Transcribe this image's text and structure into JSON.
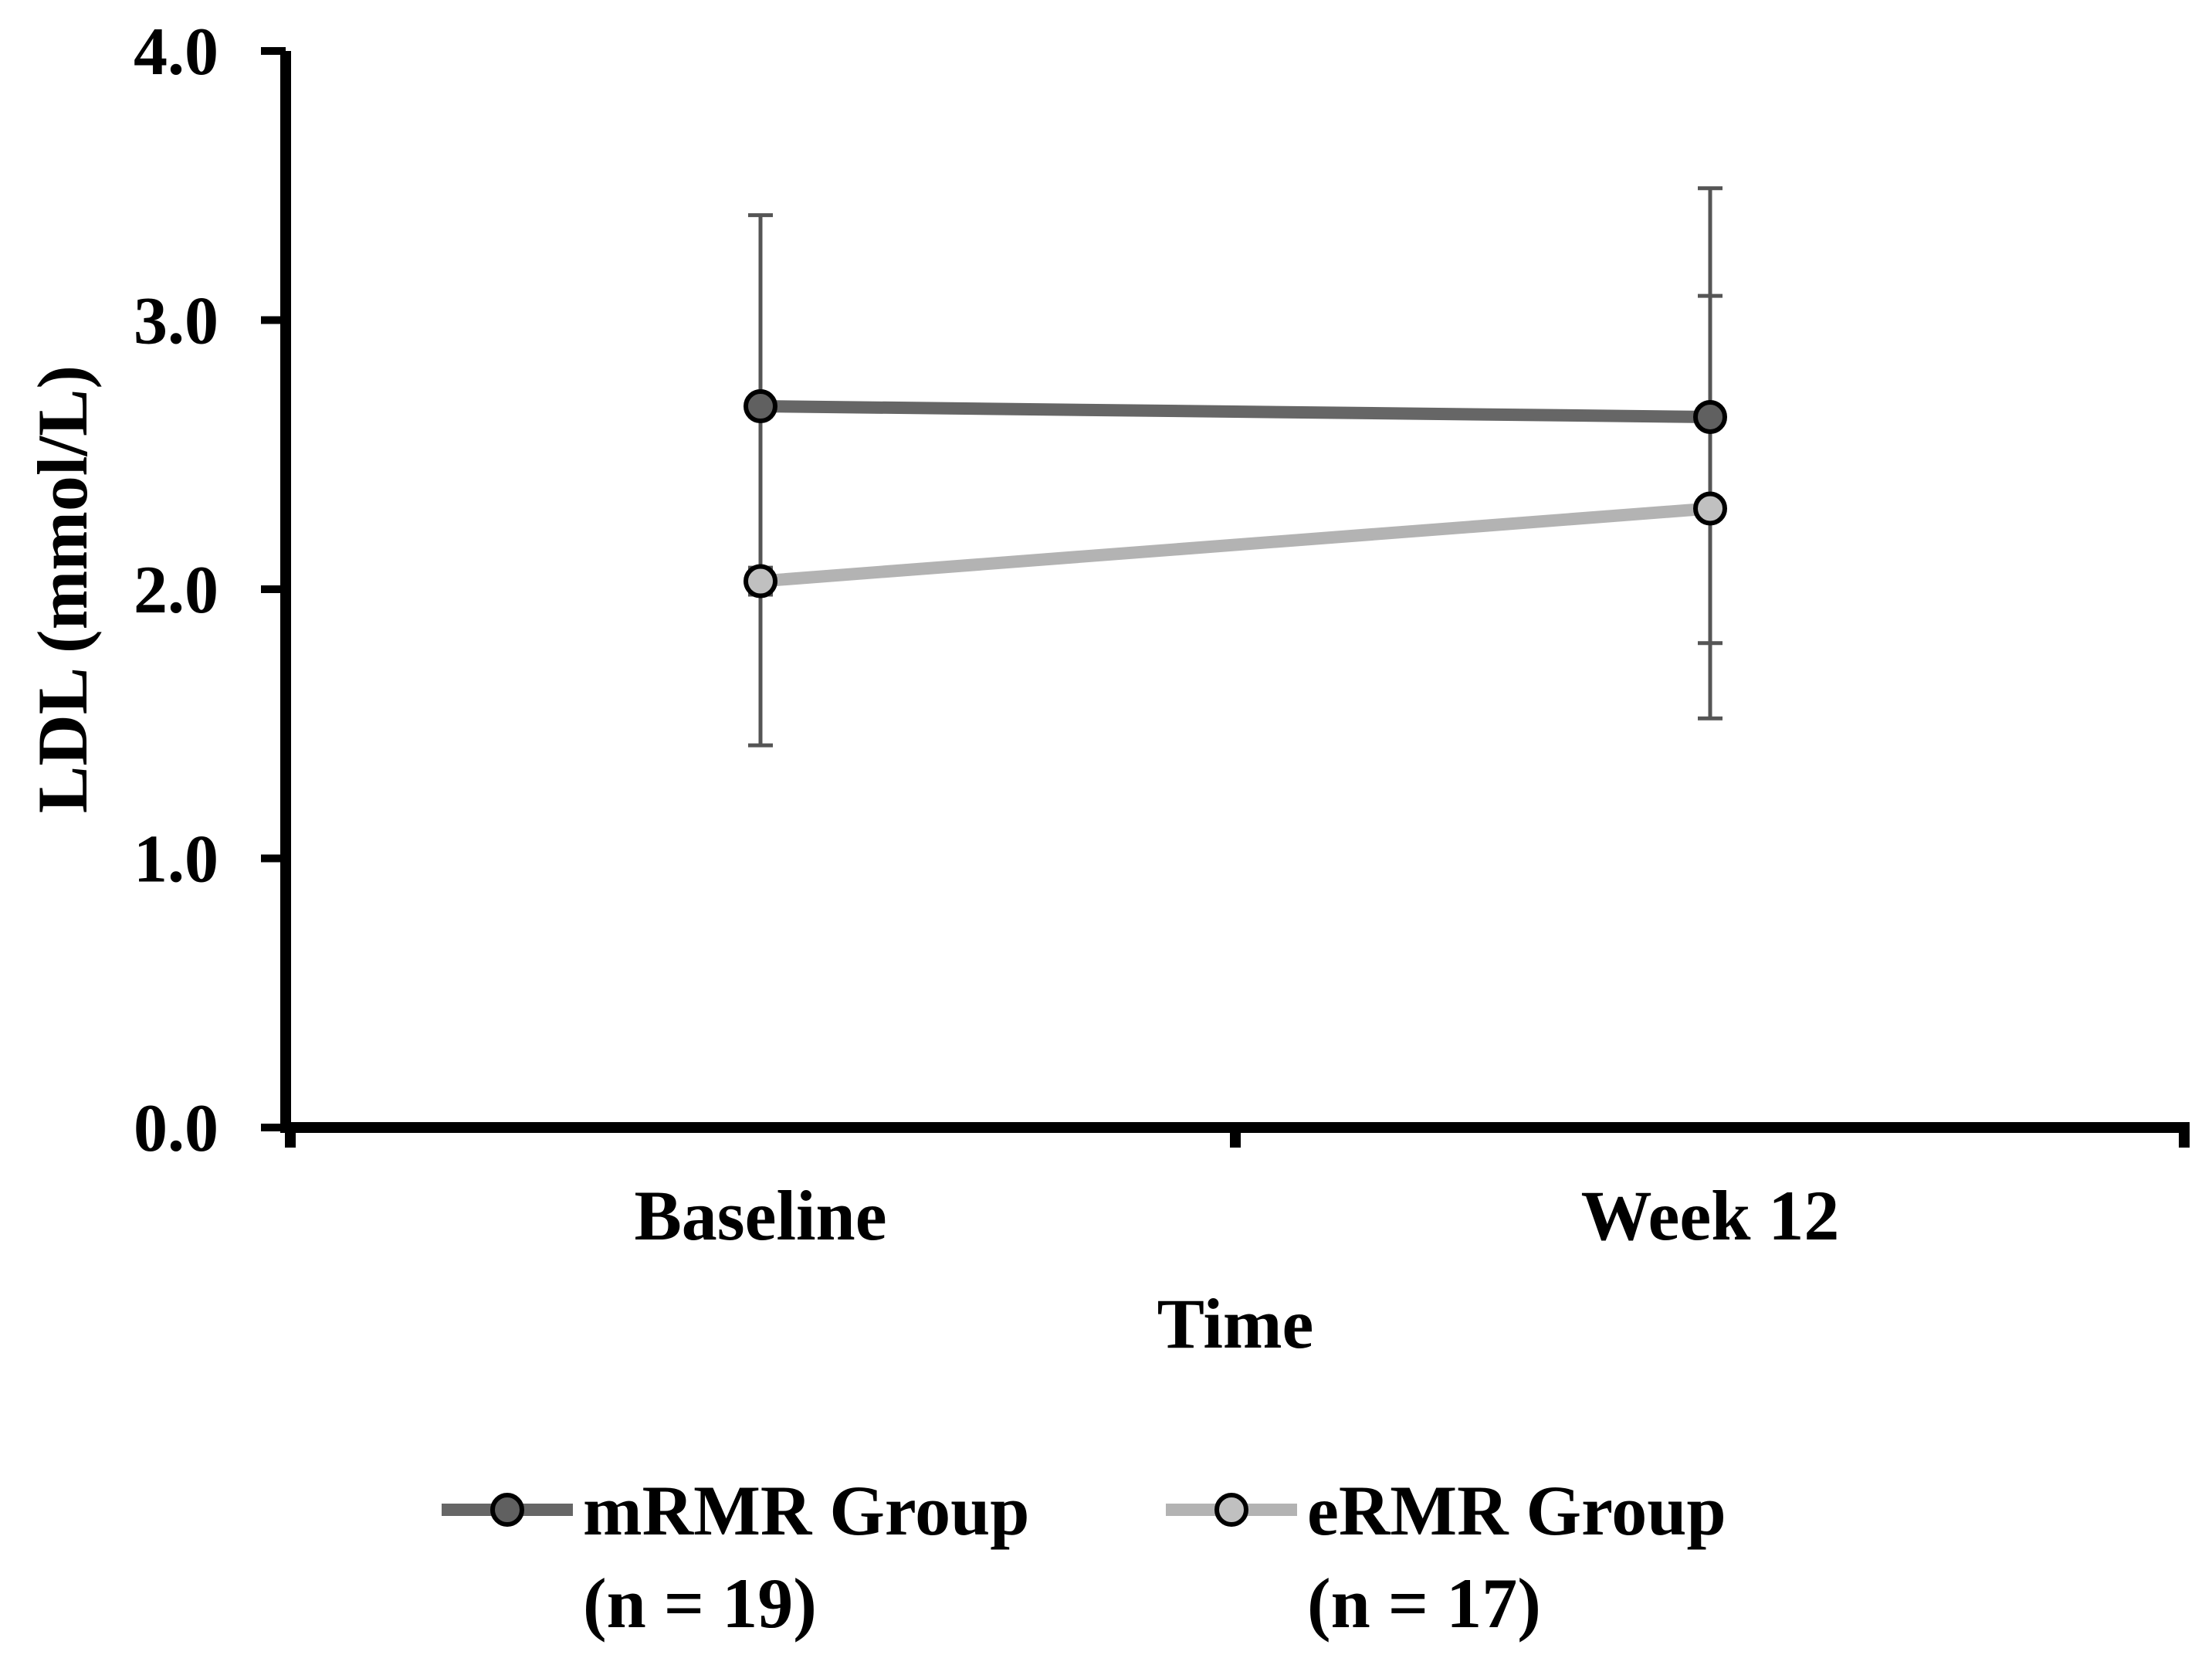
{
  "chart_data": {
    "type": "line",
    "xlabel": "Time",
    "ylabel": "LDL (mmol/L)",
    "categories": [
      "Baseline",
      "Week 12"
    ],
    "ylim": [
      0.0,
      4.0
    ],
    "yticks": [
      "0.0",
      "1.0",
      "2.0",
      "3.0",
      "4.0"
    ],
    "grid": false,
    "legend_position": "bottom",
    "series": [
      {
        "name": "mRMR Group",
        "legend_sub": "(n = 19)",
        "values": [
          2.68,
          2.64
        ],
        "error_low": [
          1.42,
          1.8
        ],
        "error_high": [
          3.39,
          3.09
        ],
        "color": "#666666",
        "marker_color": "#606060"
      },
      {
        "name": "eRMR Group",
        "legend_sub": "(n = 17)",
        "values": [
          2.03,
          2.3
        ],
        "error_low": [
          1.98,
          1.52
        ],
        "error_high": [
          2.08,
          3.49
        ],
        "color": "#b3b3b3",
        "marker_color": "#c0c0c0"
      }
    ]
  }
}
